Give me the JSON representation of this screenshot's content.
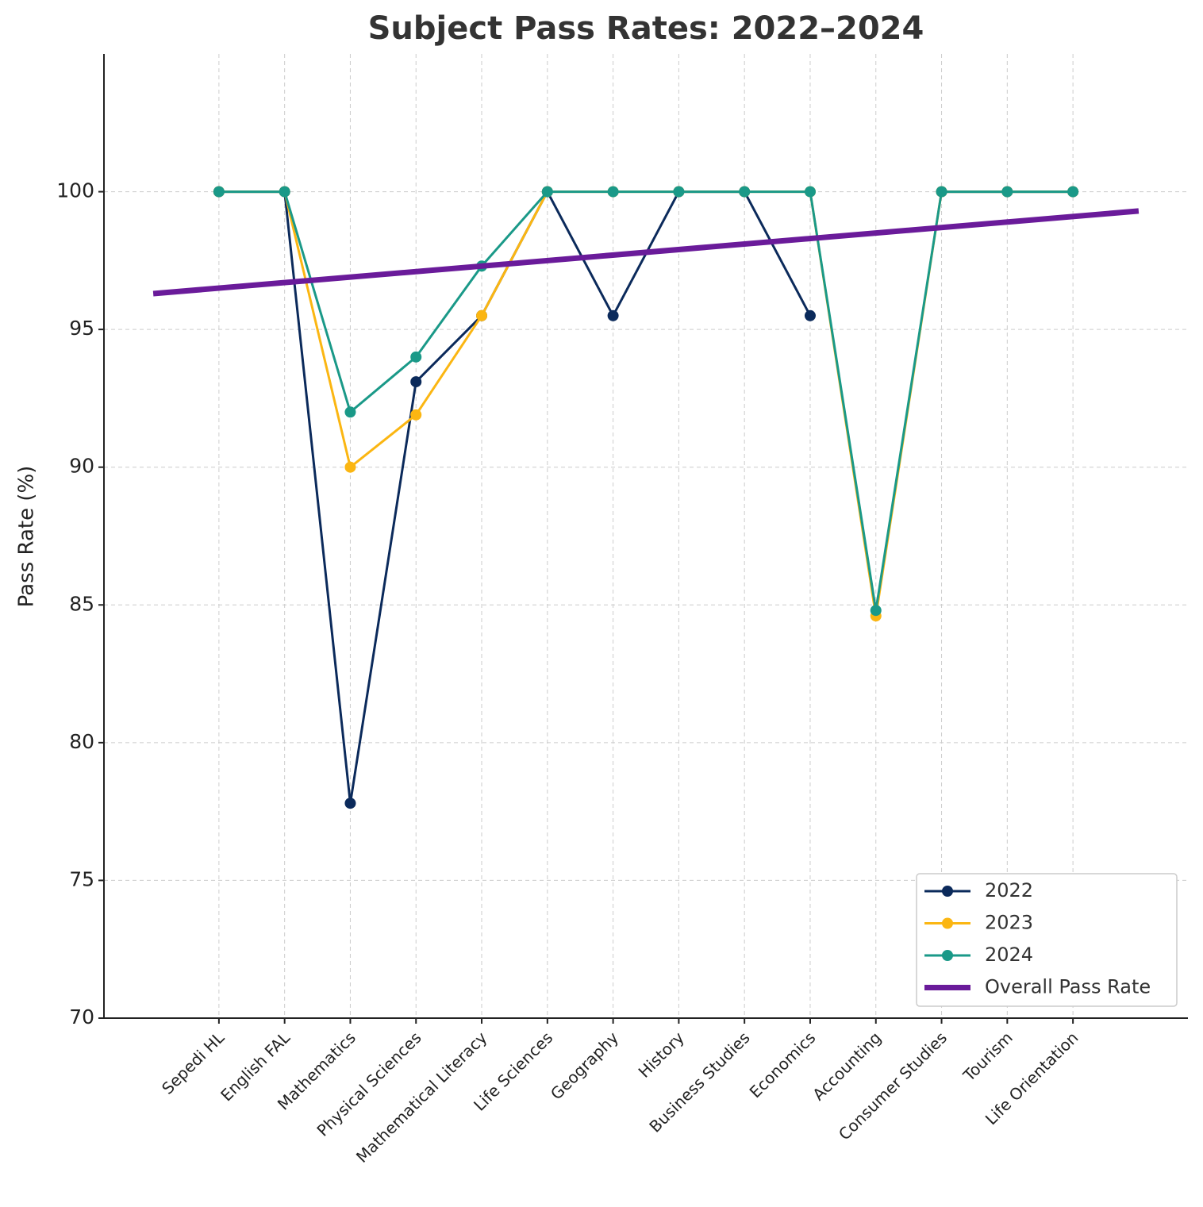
{
  "chart_data": {
    "type": "line",
    "title": "Subject Pass Rates: 2022–2024",
    "y_label": "Pass Rate (%)",
    "categories": [
      "Sepedi HL",
      "English FAL",
      "Mathematics",
      "Physical Sciences",
      "Mathematical Literacy",
      "Life Sciences",
      "Geography",
      "History",
      "Business Studies",
      "Economics",
      "Accounting",
      "Consumer Studies",
      "Tourism",
      "Life Orientation"
    ],
    "series": [
      {
        "name": "2022",
        "color": "#0b2a5b",
        "values": [
          100,
          100,
          77.8,
          93.1,
          95.5,
          100,
          95.5,
          100,
          100,
          95.5,
          null,
          100,
          100,
          100
        ]
      },
      {
        "name": "2023",
        "color": "#fbb612",
        "values": [
          100,
          100,
          90,
          91.9,
          95.5,
          100,
          100,
          100,
          100,
          100,
          84.6,
          100,
          100,
          100
        ]
      },
      {
        "name": "2024",
        "color": "#1a9988",
        "values": [
          100,
          100,
          92,
          94,
          97.3,
          100,
          100,
          100,
          100,
          100,
          84.8,
          100,
          100,
          100
        ]
      }
    ],
    "overall": {
      "name": "Overall Pass Rate",
      "color": "#6a1b9a",
      "x": [
        -1,
        14
      ],
      "values": [
        96.3,
        99.3
      ]
    },
    "xlim": [
      -1.75,
      14.75
    ],
    "ylim": [
      70,
      105
    ],
    "yticks": [
      70,
      75,
      80,
      85,
      90,
      95,
      100
    ],
    "grid": true,
    "legend": "lower right"
  }
}
